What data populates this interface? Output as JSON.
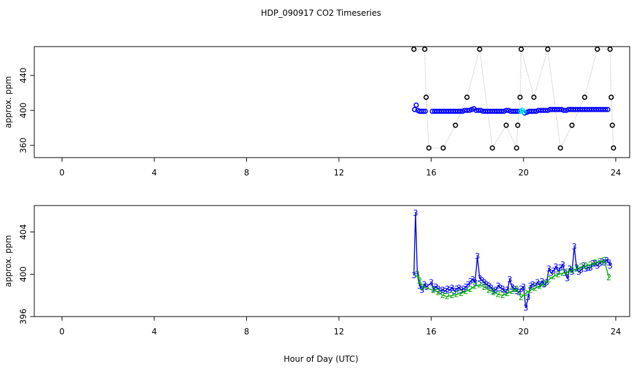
{
  "title": "HDP_090917  CO2 Timeseries",
  "xlabel": "Hour of Day (UTC)",
  "chart_data": [
    {
      "type": "scatter",
      "ylabel": "approx. ppm",
      "xlim": [
        -1.2,
        24.6
      ],
      "ylim": [
        346,
        473
      ],
      "xticks": [
        0,
        4,
        8,
        12,
        16,
        20,
        24
      ],
      "xtick_labels": [
        "0",
        "4",
        "8",
        "12",
        "16",
        "20",
        "24"
      ],
      "yticks": [
        360,
        400,
        440
      ],
      "ytick_labels": [
        "360",
        "400",
        "440"
      ],
      "series": [
        {
          "color": "#000000",
          "marker": "open-circle",
          "x": [
            15.25,
            15.72,
            15.78,
            15.9,
            16.52,
            17.05,
            17.55,
            18.1,
            18.65,
            19.25,
            19.7,
            19.75,
            19.85,
            19.9,
            20.45,
            21.05,
            21.6,
            22.1,
            22.65,
            23.2,
            23.75,
            23.8,
            23.85,
            23.9
          ],
          "y": [
            470,
            470,
            415,
            357,
            357,
            383,
            415,
            470,
            357,
            383,
            357,
            383,
            415,
            470,
            415,
            470,
            357,
            383,
            415,
            470,
            470,
            415,
            383,
            357
          ]
        },
        {
          "color": "#0000ff",
          "marker": "open-circle",
          "x": [
            15.28,
            15.35,
            15.42,
            15.5,
            15.58,
            15.66,
            15.74,
            16.05,
            16.15,
            16.25,
            16.35,
            16.45,
            16.55,
            16.65,
            16.75,
            16.85,
            16.95,
            17.05,
            17.15,
            17.25,
            17.35,
            17.45,
            17.55,
            17.65,
            17.75,
            17.85,
            17.95,
            18.05,
            18.15,
            18.25,
            18.35,
            18.45,
            18.55,
            18.65,
            18.75,
            18.85,
            18.95,
            19.05,
            19.15,
            19.25,
            19.35,
            19.45,
            19.55,
            19.65,
            19.75,
            19.85,
            20.05,
            20.15,
            20.25,
            20.35,
            20.45,
            20.55,
            20.65,
            20.75,
            20.85,
            20.95,
            21.05,
            21.15,
            21.25,
            21.35,
            21.45,
            21.55,
            21.65,
            21.75,
            21.85,
            21.95,
            22.05,
            22.15,
            22.25,
            22.35,
            22.45,
            22.55,
            22.65,
            22.75,
            22.85,
            22.95,
            23.05,
            23.15,
            23.25,
            23.35,
            23.45,
            23.55,
            23.65
          ],
          "y": [
            401,
            406,
            400,
            399,
            399,
            399,
            399,
            399,
            399,
            399,
            399,
            399,
            399,
            399,
            399,
            399,
            399,
            399,
            399,
            399,
            399,
            400,
            400,
            400,
            401,
            402,
            400,
            400,
            400,
            399,
            399,
            399,
            399,
            399,
            399,
            399,
            399,
            399,
            399,
            400,
            400,
            399,
            399,
            399,
            399,
            399,
            397,
            398,
            399,
            399,
            399,
            399,
            400,
            400,
            400,
            400,
            400,
            401,
            401,
            401,
            401,
            401,
            401,
            400,
            400,
            401,
            401,
            401,
            401,
            401,
            401,
            401,
            401,
            401,
            401,
            401,
            401,
            401,
            401,
            401,
            401,
            401,
            401
          ]
        },
        {
          "color": "#00e5e5",
          "marker": "open-circle",
          "x": [
            19.88,
            19.95,
            20.02
          ],
          "y": [
            399,
            400,
            398
          ]
        }
      ]
    },
    {
      "type": "line",
      "ylabel": "approx. ppm",
      "xlim": [
        -1.2,
        24.6
      ],
      "ylim": [
        396,
        406.5
      ],
      "xticks": [
        0,
        4,
        8,
        12,
        16,
        20,
        24
      ],
      "xtick_labels": [
        "0",
        "4",
        "8",
        "12",
        "16",
        "20",
        "24"
      ],
      "yticks": [
        396,
        400,
        404
      ],
      "ytick_labels": [
        "396",
        "400",
        "404"
      ],
      "series": [
        {
          "color": "#0000cc",
          "marker": "3",
          "x": [
            15.25,
            15.32,
            15.4,
            15.5,
            15.6,
            15.7,
            15.8,
            16.0,
            16.1,
            16.2,
            16.3,
            16.4,
            16.5,
            16.6,
            16.7,
            16.8,
            16.9,
            17.0,
            17.1,
            17.2,
            17.3,
            17.4,
            17.5,
            17.6,
            17.7,
            17.8,
            17.9,
            18.0,
            18.1,
            18.2,
            18.3,
            18.4,
            18.5,
            18.6,
            18.7,
            18.8,
            18.9,
            19.0,
            19.1,
            19.2,
            19.3,
            19.4,
            19.5,
            19.6,
            19.7,
            19.8,
            19.9,
            20.0,
            20.1,
            20.2,
            20.3,
            20.4,
            20.5,
            20.6,
            20.7,
            20.8,
            20.9,
            21.0,
            21.1,
            21.2,
            21.3,
            21.4,
            21.5,
            21.6,
            21.7,
            21.8,
            21.9,
            22.0,
            22.1,
            22.2,
            22.3,
            22.4,
            22.5,
            22.6,
            22.7,
            22.8,
            22.9,
            23.0,
            23.1,
            23.2,
            23.3,
            23.4,
            23.5,
            23.6,
            23.7,
            23.75
          ],
          "y": [
            399.9,
            405.8,
            400.0,
            398.9,
            398.5,
            399.0,
            398.8,
            399.2,
            398.6,
            398.8,
            398.6,
            398.4,
            398.5,
            398.4,
            398.6,
            398.5,
            398.7,
            398.4,
            398.6,
            398.7,
            398.5,
            398.6,
            398.8,
            399.0,
            399.3,
            399.5,
            399.2,
            401.7,
            399.6,
            399.4,
            399.2,
            399.0,
            398.9,
            398.7,
            398.4,
            398.5,
            398.9,
            398.7,
            398.6,
            398.3,
            398.5,
            399.5,
            398.8,
            398.6,
            398.4,
            398.3,
            398.6,
            398.8,
            396.8,
            397.8,
            398.9,
            399.0,
            398.9,
            399.2,
            399.0,
            399.3,
            399.0,
            399.2,
            400.5,
            400.1,
            400.3,
            400.7,
            400.3,
            400.6,
            400.9,
            400.1,
            399.6,
            400.5,
            400.2,
            402.6,
            400.6,
            400.2,
            400.4,
            400.8,
            400.5,
            400.6,
            400.6,
            401.0,
            401.0,
            400.8,
            401.0,
            401.2,
            401.1,
            401.3,
            401.1,
            400.8
          ],
          "labels_color": "#0000ff"
        },
        {
          "color": "#00aa00",
          "marker": "2",
          "x": [
            15.4,
            15.5,
            15.6,
            16.1,
            16.3,
            16.5,
            16.7,
            16.9,
            17.1,
            17.3,
            17.5,
            17.7,
            17.9,
            18.1,
            18.3,
            18.5,
            18.7,
            18.9,
            19.1,
            19.3,
            19.5,
            19.7,
            19.9,
            20.1,
            20.3,
            20.5,
            20.7,
            20.9,
            21.1,
            21.3,
            21.5,
            21.7,
            21.9,
            22.1,
            22.3,
            22.5,
            22.7,
            22.9,
            23.1,
            23.3,
            23.5,
            23.7
          ],
          "y": [
            400.0,
            399.4,
            398.8,
            398.5,
            398.3,
            398.0,
            397.9,
            398.0,
            398.1,
            398.2,
            398.4,
            398.6,
            398.9,
            399.0,
            398.8,
            398.5,
            398.3,
            398.1,
            398.0,
            398.2,
            398.4,
            398.6,
            397.8,
            398.2,
            398.5,
            398.7,
            398.9,
            399.1,
            399.5,
            399.8,
            400.0,
            400.1,
            400.2,
            400.4,
            400.5,
            400.7,
            400.8,
            400.9,
            401.1,
            401.2,
            401.3,
            399.7
          ]
        }
      ]
    }
  ]
}
